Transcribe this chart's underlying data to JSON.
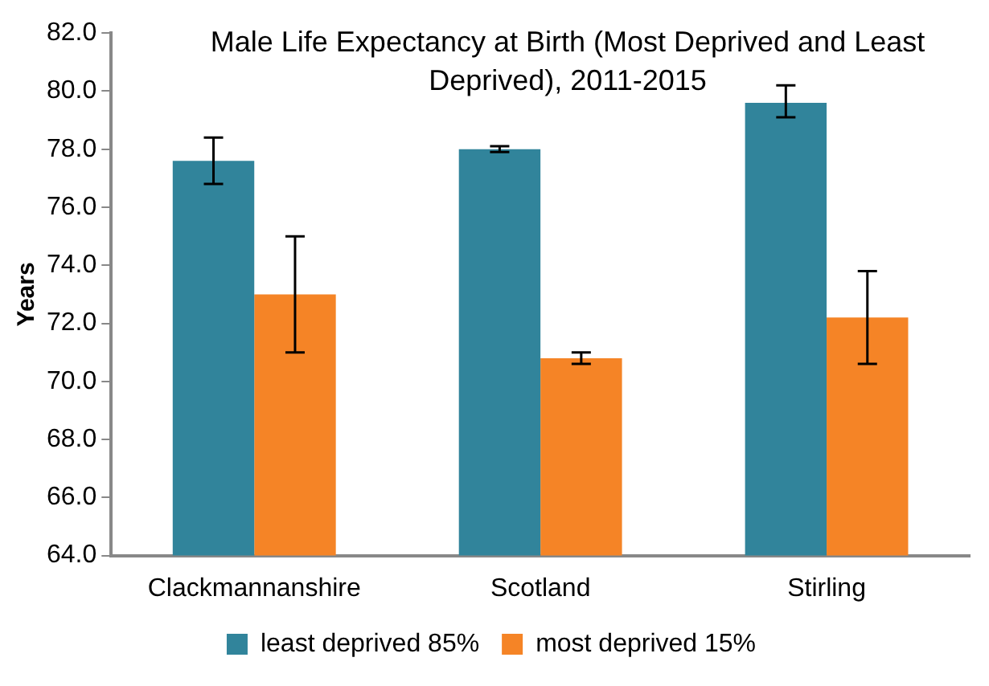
{
  "chart_data": {
    "type": "bar",
    "title": "Male Life Expectancy at Birth (Most Deprived and Least Deprived), 2011-2015",
    "ylabel": "Years",
    "categories": [
      "Clackmannanshire",
      "Scotland",
      "Stirling"
    ],
    "series": [
      {
        "name": "least deprived 85%",
        "color": "#31849b",
        "values": [
          77.6,
          78.0,
          79.6
        ],
        "errors": [
          [
            76.8,
            78.4
          ],
          [
            77.9,
            78.1
          ],
          [
            79.1,
            80.2
          ]
        ]
      },
      {
        "name": "most deprived 15%",
        "color": "#f58426",
        "values": [
          73.0,
          70.8,
          72.2
        ],
        "errors": [
          [
            71.0,
            75.0
          ],
          [
            70.6,
            71.0
          ],
          [
            70.6,
            73.8
          ]
        ]
      }
    ],
    "ylim": [
      64,
      82
    ],
    "yticks": [
      {
        "value": 64,
        "label": "64.0"
      },
      {
        "value": 66,
        "label": "66.0"
      },
      {
        "value": 68,
        "label": "68.0"
      },
      {
        "value": 70,
        "label": "70.0"
      },
      {
        "value": 72,
        "label": "72.0"
      },
      {
        "value": 74,
        "label": "74.0"
      },
      {
        "value": 76,
        "label": "76.0"
      },
      {
        "value": 78,
        "label": "78.0"
      },
      {
        "value": 80,
        "label": "80.0"
      },
      {
        "value": 82,
        "label": "82.0"
      }
    ],
    "grid": false,
    "legend": "bottom"
  }
}
